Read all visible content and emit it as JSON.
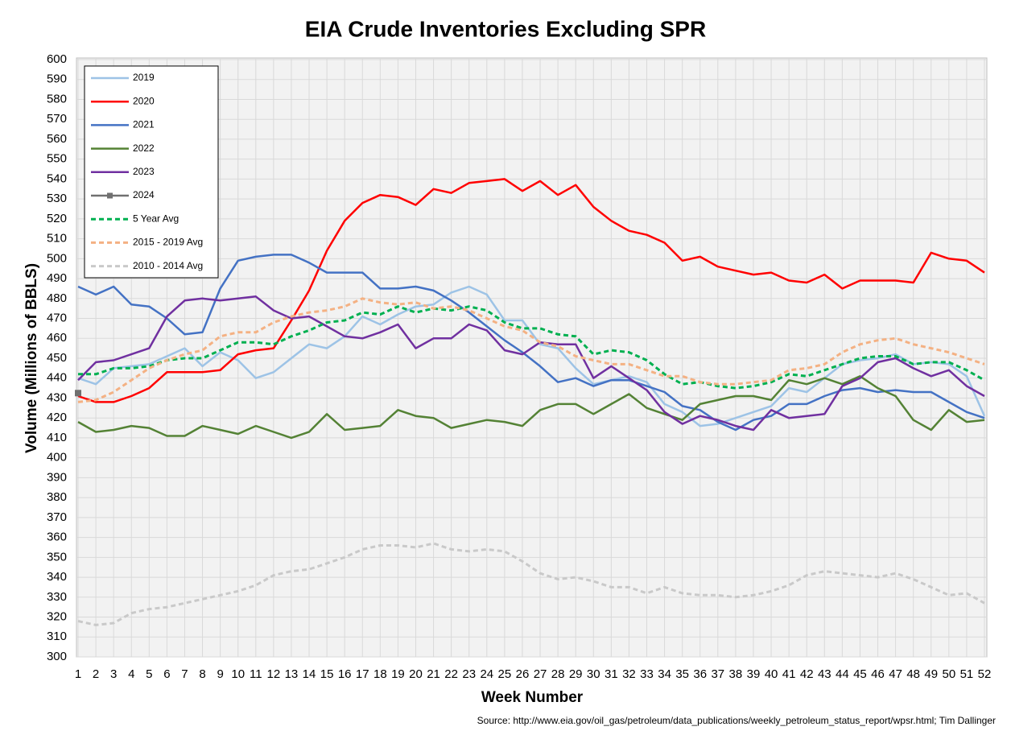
{
  "chart_data": {
    "type": "line",
    "title": "EIA Crude Inventories Excluding SPR",
    "x_label": "Week Number",
    "y_label": "Volume (Millions of BBLS)",
    "source": "Source: http://www.eia.gov/oil_gas/petroleum/data_publications/weekly_petroleum_status_report/wpsr.html; Tim Dallinger",
    "x": [
      1,
      2,
      3,
      4,
      5,
      6,
      7,
      8,
      9,
      10,
      11,
      12,
      13,
      14,
      15,
      16,
      17,
      18,
      19,
      20,
      21,
      22,
      23,
      24,
      25,
      26,
      27,
      28,
      29,
      30,
      31,
      32,
      33,
      34,
      35,
      36,
      37,
      38,
      39,
      40,
      41,
      42,
      43,
      44,
      45,
      46,
      47,
      48,
      49,
      50,
      51,
      52
    ],
    "xlim": [
      1,
      52
    ],
    "xticks": [
      1,
      2,
      3,
      4,
      5,
      6,
      7,
      8,
      9,
      10,
      11,
      12,
      13,
      14,
      15,
      16,
      17,
      18,
      19,
      20,
      21,
      22,
      23,
      24,
      25,
      26,
      27,
      28,
      29,
      30,
      31,
      32,
      33,
      34,
      35,
      36,
      37,
      38,
      39,
      40,
      41,
      42,
      43,
      44,
      45,
      46,
      47,
      48,
      49,
      50,
      51,
      52
    ],
    "ylim": [
      300,
      600
    ],
    "yticks": [
      300,
      310,
      320,
      330,
      340,
      350,
      360,
      370,
      380,
      390,
      400,
      410,
      420,
      430,
      440,
      450,
      460,
      470,
      480,
      490,
      500,
      510,
      520,
      530,
      540,
      550,
      560,
      570,
      580,
      590,
      600
    ],
    "grid": true,
    "legend": "upper left",
    "series": [
      {
        "name": "2019",
        "color": "#9dc3e6",
        "style": "solid",
        "values": [
          440,
          437,
          445,
          446,
          447,
          451,
          455,
          446,
          453,
          449,
          440,
          443,
          450,
          457,
          455,
          461,
          471,
          467,
          472,
          476,
          477,
          483,
          486,
          482,
          469,
          469,
          457,
          455,
          445,
          437,
          439,
          441,
          438,
          427,
          423,
          416,
          417,
          420,
          423,
          426,
          435,
          433,
          440,
          447,
          449,
          450,
          452,
          447,
          448,
          447,
          441,
          421
        ]
      },
      {
        "name": "2020",
        "color": "#ff0000",
        "style": "solid",
        "values": [
          431,
          428,
          428,
          431,
          435,
          443,
          443,
          443,
          444,
          452,
          454,
          455,
          469,
          484,
          504,
          519,
          528,
          532,
          531,
          527,
          535,
          533,
          538,
          539,
          540,
          534,
          539,
          532,
          537,
          526,
          519,
          514,
          512,
          508,
          499,
          501,
          496,
          494,
          492,
          493,
          489,
          488,
          492,
          485,
          489,
          489,
          489,
          488,
          503,
          500,
          499,
          493
        ]
      },
      {
        "name": "2021",
        "color": "#4472c4",
        "style": "solid",
        "values": [
          486,
          482,
          486,
          477,
          476,
          470,
          462,
          463,
          485,
          499,
          501,
          502,
          502,
          498,
          493,
          493,
          493,
          485,
          485,
          486,
          484,
          479,
          473,
          466,
          459,
          453,
          446,
          438,
          440,
          436,
          439,
          439,
          436,
          433,
          426,
          424,
          418,
          414,
          419,
          421,
          427,
          427,
          431,
          434,
          435,
          433,
          434,
          433,
          433,
          428,
          423,
          420
        ]
      },
      {
        "name": "2022",
        "color": "#548235",
        "style": "solid",
        "values": [
          418,
          413,
          414,
          416,
          415,
          411,
          411,
          416,
          414,
          412,
          416,
          413,
          410,
          413,
          422,
          414,
          415,
          416,
          424,
          421,
          420,
          415,
          417,
          419,
          418,
          416,
          424,
          427,
          427,
          422,
          427,
          432,
          425,
          422,
          419,
          427,
          429,
          431,
          431,
          429,
          439,
          437,
          440,
          437,
          441,
          435,
          431,
          419,
          414,
          424,
          418,
          419
        ]
      },
      {
        "name": "2023",
        "color": "#7030a0",
        "style": "solid",
        "values": [
          439,
          448,
          449,
          452,
          455,
          471,
          479,
          480,
          479,
          480,
          481,
          474,
          470,
          471,
          466,
          461,
          460,
          463,
          467,
          455,
          460,
          460,
          467,
          464,
          454,
          452,
          458,
          457,
          457,
          440,
          446,
          440,
          434,
          423,
          417,
          421,
          419,
          416,
          414,
          424,
          420,
          421,
          422,
          436,
          440,
          448,
          450,
          445,
          441,
          444,
          436,
          431
        ]
      },
      {
        "name": "2024",
        "color": "#707070",
        "style": "solid",
        "marker": "square",
        "values": [
          432.5,
          null,
          null,
          null,
          null,
          null,
          null,
          null,
          null,
          null,
          null,
          null,
          null,
          null,
          null,
          null,
          null,
          null,
          null,
          null,
          null,
          null,
          null,
          null,
          null,
          null,
          null,
          null,
          null,
          null,
          null,
          null,
          null,
          null,
          null,
          null,
          null,
          null,
          null,
          null,
          null,
          null,
          null,
          null,
          null,
          null,
          null,
          null,
          null,
          null,
          null,
          null
        ]
      },
      {
        "name": "5 Year Avg",
        "color": "#00b050",
        "style": "dashed",
        "values": [
          442,
          442,
          445,
          445,
          446,
          449,
          450,
          450,
          454,
          458,
          458,
          457,
          461,
          464,
          468,
          469,
          473,
          472,
          476,
          473,
          475,
          474,
          476,
          474,
          468,
          465,
          465,
          462,
          461,
          452,
          454,
          453,
          449,
          442,
          437,
          438,
          436,
          435,
          436,
          438,
          442,
          441,
          444,
          447,
          450,
          451,
          451,
          447,
          448,
          448,
          444,
          439
        ]
      },
      {
        "name": "2015 - 2019 Avg",
        "color": "#f4b183",
        "style": "dashed",
        "values": [
          428,
          429,
          433,
          439,
          445,
          449,
          452,
          454,
          461,
          463,
          463,
          468,
          471,
          473,
          474,
          476,
          480,
          478,
          477,
          478,
          475,
          476,
          474,
          470,
          466,
          464,
          458,
          456,
          451,
          449,
          447,
          447,
          444,
          441,
          441,
          438,
          437,
          437,
          438,
          439,
          444,
          445,
          447,
          453,
          457,
          459,
          460,
          457,
          455,
          453,
          450,
          447
        ]
      },
      {
        "name": "2010 - 2014 Avg",
        "color": "#c9c9c9",
        "style": "dashed",
        "values": [
          318,
          316,
          317,
          322,
          324,
          325,
          327,
          329,
          331,
          333,
          336,
          341,
          343,
          344,
          347,
          350,
          354,
          356,
          356,
          355,
          357,
          354,
          353,
          354,
          353,
          348,
          342,
          339,
          340,
          338,
          335,
          335,
          332,
          335,
          332,
          331,
          331,
          330,
          331,
          333,
          336,
          341,
          343,
          342,
          341,
          340,
          342,
          339,
          335,
          331,
          332,
          327
        ]
      }
    ]
  }
}
